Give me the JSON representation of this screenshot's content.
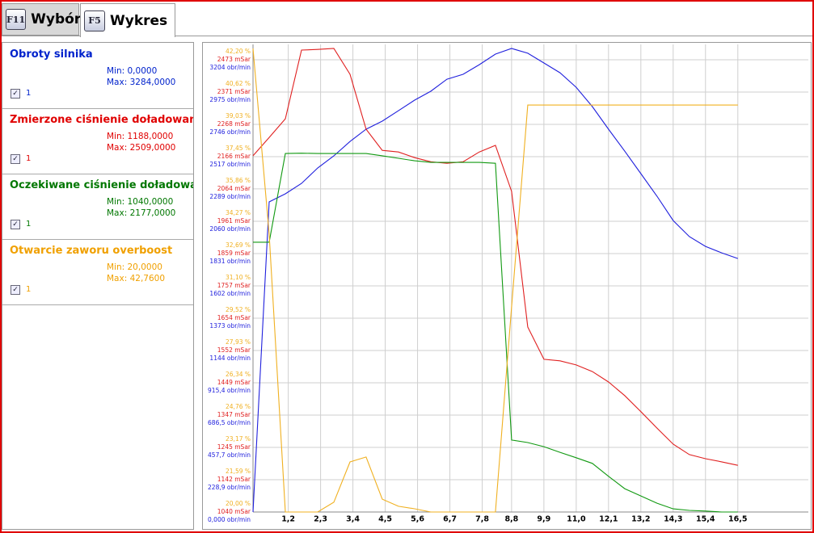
{
  "tabs": [
    {
      "key": "F11",
      "label": "Wybór"
    },
    {
      "key": "F5",
      "label": "Wykres"
    }
  ],
  "channels": [
    {
      "name": "Obroty silnika",
      "min": "Min: 0,0000",
      "max": "Max: 3284,0000",
      "checkbox": "1",
      "color": "#0022cc"
    },
    {
      "name": "Zmierzone ciśnienie doładowani",
      "min": "Min: 1188,0000",
      "max": "Max: 2509,0000",
      "checkbox": "1",
      "color": "#e00000"
    },
    {
      "name": "Oczekiwane ciśnienie doładowan",
      "min": "Min: 1040,0000",
      "max": "Max: 2177,0000",
      "checkbox": "1",
      "color": "#007700"
    },
    {
      "name": "Otwarcie zaworu overboost",
      "min": "Min: 20,0000",
      "max": "Max: 42,7600",
      "checkbox": "1",
      "color": "#f0a000"
    }
  ],
  "chart_data": {
    "type": "line",
    "grid": true,
    "x": [
      0,
      0.55,
      1.1,
      1.65,
      2.2,
      2.75,
      3.3,
      3.85,
      4.4,
      4.95,
      5.5,
      6.05,
      6.6,
      7.15,
      7.7,
      8.25,
      8.8,
      9.35,
      9.9,
      10.45,
      11,
      11.55,
      12.1,
      12.65,
      13.2,
      13.75,
      14.3,
      14.85,
      15.4,
      15.95,
      16.5
    ],
    "xlim": [
      0,
      18.9
    ],
    "xticks": [
      {
        "value": 1.2,
        "label": "1,2"
      },
      {
        "value": 2.3,
        "label": "2,3"
      },
      {
        "value": 3.4,
        "label": "3,4"
      },
      {
        "value": 4.5,
        "label": "4,5"
      },
      {
        "value": 5.6,
        "label": "5,6"
      },
      {
        "value": 6.7,
        "label": "6,7"
      },
      {
        "value": 7.8,
        "label": "7,8"
      },
      {
        "value": 8.8,
        "label": "8,8"
      },
      {
        "value": 9.9,
        "label": "9,9"
      },
      {
        "value": 11.0,
        "label": "11,0"
      },
      {
        "value": 12.1,
        "label": "12,1"
      },
      {
        "value": 13.2,
        "label": "13,2"
      },
      {
        "value": 14.3,
        "label": "14,3"
      },
      {
        "value": 15.4,
        "label": "15,4"
      },
      {
        "value": 16.5,
        "label": "16,5"
      }
    ],
    "ylim": [
      0,
      3284
    ],
    "yticks": [
      {
        "value": 0,
        "label": "0,000 obr/min"
      },
      {
        "value": 228.9,
        "label": "228,9 obr/min"
      },
      {
        "value": 457.7,
        "label": "457,7 obr/min"
      },
      {
        "value": 686.5,
        "label": "686,5 obr/min"
      },
      {
        "value": 915.4,
        "label": "915,4 obr/min"
      },
      {
        "value": 1144,
        "label": "1144 obr/min"
      },
      {
        "value": 1373,
        "label": "1373 obr/min"
      },
      {
        "value": 1602,
        "label": "1602 obr/min"
      },
      {
        "value": 1831,
        "label": "1831 obr/min"
      },
      {
        "value": 2060,
        "label": "2060 obr/min"
      },
      {
        "value": 2289,
        "label": "2289 obr/min"
      },
      {
        "value": 2517,
        "label": "2517 obr/min"
      },
      {
        "value": 2746,
        "label": "2746 obr/min"
      },
      {
        "value": 2975,
        "label": "2975 obr/min"
      },
      {
        "value": 3204,
        "label": "3204 obr/min"
      }
    ],
    "y2lim": [
      1040,
      2509
    ],
    "y2ticks": [
      {
        "value": 1040,
        "label": "1040 mSar"
      },
      {
        "value": 1142,
        "label": "1142 mSar"
      },
      {
        "value": 1245,
        "label": "1245 mSar"
      },
      {
        "value": 1347,
        "label": "1347 mSar"
      },
      {
        "value": 1449,
        "label": "1449 mSar"
      },
      {
        "value": 1552,
        "label": "1552 mSar"
      },
      {
        "value": 1654,
        "label": "1654 mSar"
      },
      {
        "value": 1757,
        "label": "1757 mSar"
      },
      {
        "value": 1859,
        "label": "1859 mSar"
      },
      {
        "value": 1961,
        "label": "1961 mSar"
      },
      {
        "value": 2064,
        "label": "2064 mSar"
      },
      {
        "value": 2166,
        "label": "2166 mSar"
      },
      {
        "value": 2268,
        "label": "2268 mSar"
      },
      {
        "value": 2371,
        "label": "2371 mSar"
      },
      {
        "value": 2473,
        "label": "2473 mSar"
      }
    ],
    "y3lim": [
      20,
      42.76
    ],
    "y3ticks": [
      {
        "value": 20.0,
        "label": "20,00 %"
      },
      {
        "value": 21.59,
        "label": "21,59 %"
      },
      {
        "value": 23.17,
        "label": "23,17 %"
      },
      {
        "value": 24.76,
        "label": "24,76 %"
      },
      {
        "value": 26.34,
        "label": "26,34 %"
      },
      {
        "value": 27.93,
        "label": "27,93 %"
      },
      {
        "value": 29.52,
        "label": "29,52 %"
      },
      {
        "value": 31.1,
        "label": "31,10 %"
      },
      {
        "value": 32.69,
        "label": "32,69 %"
      },
      {
        "value": 34.27,
        "label": "34,27 %"
      },
      {
        "value": 35.86,
        "label": "35,86 %"
      },
      {
        "value": 37.45,
        "label": "37,45 %"
      },
      {
        "value": 39.03,
        "label": "39,03 %"
      },
      {
        "value": 40.62,
        "label": "40,62 %"
      },
      {
        "value": 42.2,
        "label": "42,20 %"
      }
    ],
    "series": [
      {
        "color": "#2020dd",
        "values": [
          0,
          2197,
          2254,
          2328,
          2437,
          2523,
          2625,
          2712,
          2769,
          2843,
          2918,
          2981,
          3066,
          3101,
          3169,
          3244,
          3284,
          3250,
          3181,
          3112,
          3009,
          2872,
          2712,
          2557,
          2397,
          2237,
          2065,
          1951,
          1882,
          1836,
          1796
        ]
      },
      {
        "color": "#e02020",
        "axis": "y2",
        "values": [
          2169,
          2227,
          2286,
          2504,
          2506,
          2509,
          2427,
          2253,
          2186,
          2181,
          2163,
          2150,
          2145,
          2150,
          2181,
          2202,
          2056,
          1626,
          1524,
          1519,
          1506,
          1485,
          1452,
          1409,
          1358,
          1306,
          1255,
          1222,
          1209,
          1199,
          1188
        ]
      },
      {
        "color": "#119911",
        "axis": "y2",
        "values": [
          1895,
          1895,
          2176,
          2177,
          2176,
          2176,
          2176,
          2176,
          2169,
          2161,
          2153,
          2148,
          2148,
          2148,
          2148,
          2145,
          1268,
          1260,
          1247,
          1229,
          1212,
          1194,
          1153,
          1114,
          1091,
          1068,
          1050,
          1045,
          1043,
          1040,
          1040
        ]
      },
      {
        "color": "#f0b020",
        "axis": "y3",
        "values": [
          42.76,
          33.64,
          20,
          20,
          20,
          20.48,
          22.46,
          22.7,
          20.63,
          20.28,
          20.16,
          20,
          20,
          20,
          20,
          20,
          30.07,
          39.98,
          39.98,
          39.98,
          39.98,
          39.98,
          39.98,
          39.98,
          39.98,
          39.98,
          39.98,
          39.98,
          39.98,
          39.98,
          39.98
        ]
      }
    ]
  }
}
